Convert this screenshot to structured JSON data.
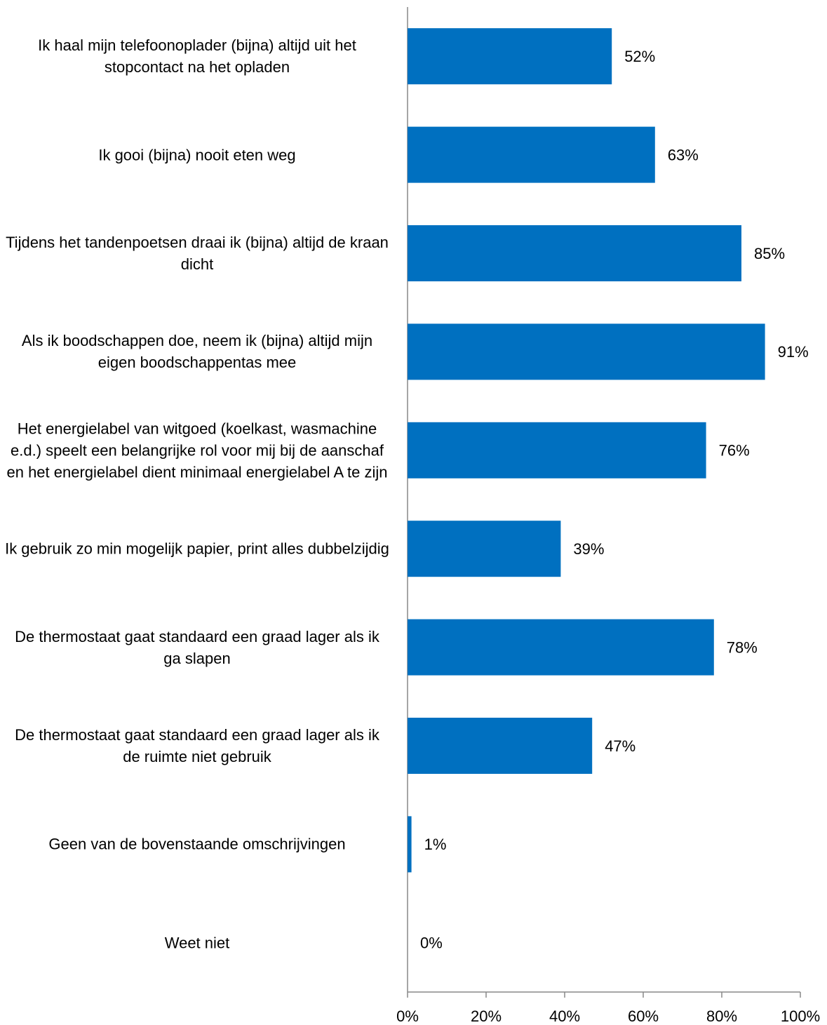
{
  "chart_data": {
    "type": "bar",
    "orientation": "horizontal",
    "categories": [
      "Ik haal mijn telefoonoplader (bijna) altijd uit het stopcontact na het opladen",
      "Ik gooi (bijna) nooit eten weg",
      "Tijdens het tandenpoetsen draai ik (bijna) altijd de kraan dicht",
      "Als ik boodschappen doe, neem ik (bijna) altijd mijn eigen boodschappentas mee",
      "Het energielabel van witgoed (koelkast, wasmachine e.d.) speelt een belangrijke rol voor mij bij de aanschaf en het energielabel dient minimaal energielabel A te zijn",
      "Ik gebruik zo min mogelijk papier, print alles dubbelzijdig",
      "De thermostaat gaat standaard een graad lager als ik ga slapen",
      "De thermostaat gaat standaard een graad lager als ik de ruimte niet gebruik",
      "Geen van de bovenstaande omschrijvingen",
      "Weet niet"
    ],
    "values": [
      52,
      63,
      85,
      91,
      76,
      39,
      78,
      47,
      1,
      0
    ],
    "value_labels": [
      "52%",
      "63%",
      "85%",
      "91%",
      "76%",
      "39%",
      "78%",
      "47%",
      "1%",
      "0%"
    ],
    "color": "#0070c0",
    "xlim": [
      0,
      100
    ],
    "xticks": [
      {
        "value": 0,
        "label": "0%"
      },
      {
        "value": 20,
        "label": "20%"
      },
      {
        "value": 40,
        "label": "40%"
      },
      {
        "value": 60,
        "label": "60%"
      },
      {
        "value": 80,
        "label": "80%"
      },
      {
        "value": 100,
        "label": "100%"
      }
    ],
    "grid": false
  }
}
